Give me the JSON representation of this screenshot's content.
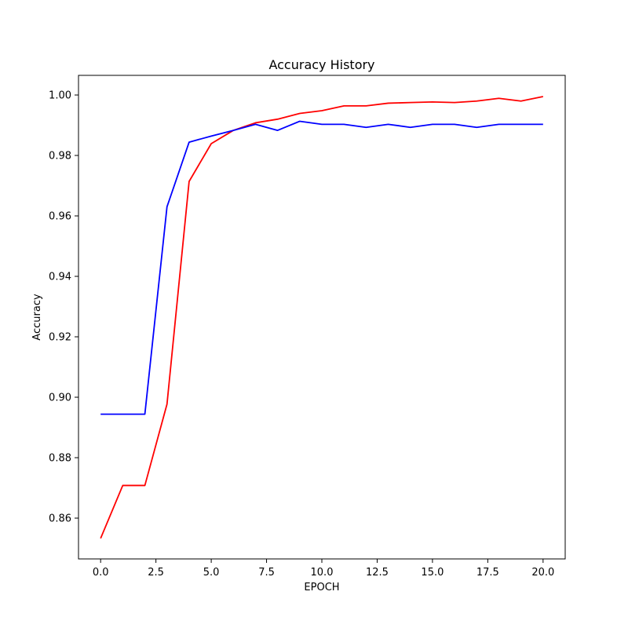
{
  "chart_data": {
    "type": "line",
    "title": "Accuracy History",
    "xlabel": "EPOCH",
    "ylabel": "Accuracy",
    "xlim": [
      -1,
      21
    ],
    "ylim": [
      0.8465,
      1.0065
    ],
    "xticks": [
      0.0,
      2.5,
      5.0,
      7.5,
      10.0,
      12.5,
      15.0,
      17.5,
      20.0
    ],
    "xtick_labels": [
      "0.0",
      "2.5",
      "5.0",
      "7.5",
      "10.0",
      "12.5",
      "15.0",
      "17.5",
      "20.0"
    ],
    "yticks": [
      0.86,
      0.88,
      0.9,
      0.92,
      0.94,
      0.96,
      0.98,
      1.0
    ],
    "ytick_labels": [
      "0.86",
      "0.88",
      "0.90",
      "0.92",
      "0.94",
      "0.96",
      "0.98",
      "1.00"
    ],
    "grid": false,
    "x": [
      0,
      1,
      2,
      3,
      4,
      5,
      6,
      7,
      8,
      9,
      10,
      11,
      12,
      13,
      14,
      15,
      16,
      17,
      18,
      19,
      20
    ],
    "series": [
      {
        "color": "#ff0000",
        "values": [
          0.8533,
          0.8708,
          0.8708,
          0.8977,
          0.9714,
          0.9839,
          0.9883,
          0.9908,
          0.992,
          0.9939,
          0.9948,
          0.9964,
          0.9964,
          0.9973,
          0.9975,
          0.9977,
          0.9975,
          0.998,
          0.9989,
          0.998,
          0.9995
        ]
      },
      {
        "color": "#0000ff",
        "values": [
          0.8944,
          0.8944,
          0.8944,
          0.963,
          0.9844,
          0.9864,
          0.9883,
          0.9903,
          0.9883,
          0.9913,
          0.9903,
          0.9903,
          0.9893,
          0.9903,
          0.9893,
          0.9903,
          0.9903,
          0.9893,
          0.9903,
          0.9903,
          0.9903
        ]
      }
    ]
  }
}
